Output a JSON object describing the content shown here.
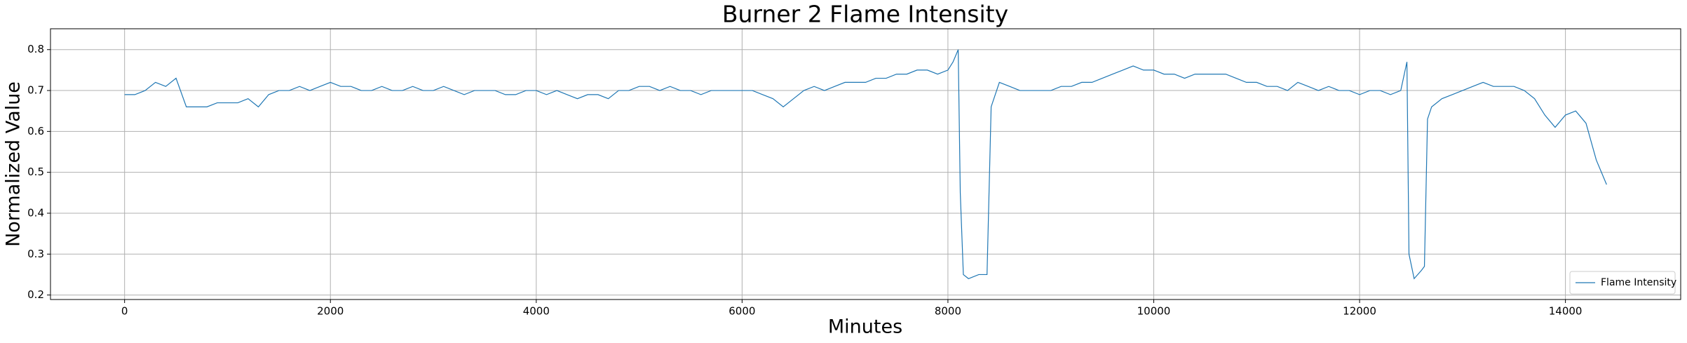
{
  "chart_data": {
    "type": "line",
    "title": "Burner 2 Flame Intensity",
    "x_label": "Minutes",
    "y_label": "Normalized Value",
    "x": [
      0,
      100,
      200,
      300,
      400,
      500,
      600,
      700,
      800,
      900,
      1000,
      1100,
      1200,
      1300,
      1400,
      1500,
      1600,
      1700,
      1800,
      1900,
      2000,
      2100,
      2200,
      2300,
      2400,
      2500,
      2600,
      2700,
      2800,
      2900,
      3000,
      3100,
      3200,
      3300,
      3400,
      3500,
      3600,
      3700,
      3800,
      3900,
      4000,
      4100,
      4200,
      4300,
      4400,
      4500,
      4600,
      4700,
      4800,
      4900,
      5000,
      5100,
      5200,
      5300,
      5400,
      5500,
      5600,
      5700,
      5800,
      5900,
      6000,
      6100,
      6200,
      6300,
      6400,
      6500,
      6600,
      6700,
      6800,
      6900,
      7000,
      7100,
      7200,
      7300,
      7400,
      7500,
      7600,
      7700,
      7800,
      7900,
      8000,
      8050,
      8100,
      8120,
      8150,
      8200,
      8300,
      8380,
      8420,
      8500,
      8600,
      8700,
      8800,
      8900,
      9000,
      9100,
      9200,
      9300,
      9400,
      9500,
      9600,
      9700,
      9800,
      9900,
      10000,
      10100,
      10200,
      10300,
      10400,
      10500,
      10600,
      10700,
      10800,
      10900,
      11000,
      11100,
      11200,
      11300,
      11400,
      11500,
      11600,
      11700,
      11800,
      11900,
      12000,
      12100,
      12200,
      12300,
      12400,
      12460,
      12480,
      12530,
      12600,
      12630,
      12660,
      12700,
      12800,
      12900,
      13000,
      13100,
      13200,
      13300,
      13400,
      13500,
      13600,
      13700,
      13800,
      13900,
      14000,
      14100,
      14200,
      14300,
      14400
    ],
    "series": [
      {
        "name": "Flame Intensity",
        "color": "#1f77b4",
        "values": [
          0.69,
          0.69,
          0.7,
          0.72,
          0.71,
          0.73,
          0.66,
          0.66,
          0.66,
          0.67,
          0.67,
          0.67,
          0.68,
          0.66,
          0.69,
          0.7,
          0.7,
          0.71,
          0.7,
          0.71,
          0.72,
          0.71,
          0.71,
          0.7,
          0.7,
          0.71,
          0.7,
          0.7,
          0.71,
          0.7,
          0.7,
          0.71,
          0.7,
          0.69,
          0.7,
          0.7,
          0.7,
          0.69,
          0.69,
          0.7,
          0.7,
          0.69,
          0.7,
          0.69,
          0.68,
          0.69,
          0.69,
          0.68,
          0.7,
          0.7,
          0.71,
          0.71,
          0.7,
          0.71,
          0.7,
          0.7,
          0.69,
          0.7,
          0.7,
          0.7,
          0.7,
          0.7,
          0.69,
          0.68,
          0.66,
          0.68,
          0.7,
          0.71,
          0.7,
          0.71,
          0.72,
          0.72,
          0.72,
          0.73,
          0.73,
          0.74,
          0.74,
          0.75,
          0.75,
          0.74,
          0.75,
          0.77,
          0.8,
          0.45,
          0.25,
          0.24,
          0.25,
          0.25,
          0.66,
          0.72,
          0.71,
          0.7,
          0.7,
          0.7,
          0.7,
          0.71,
          0.71,
          0.72,
          0.72,
          0.73,
          0.74,
          0.75,
          0.76,
          0.75,
          0.75,
          0.74,
          0.74,
          0.73,
          0.74,
          0.74,
          0.74,
          0.74,
          0.73,
          0.72,
          0.72,
          0.71,
          0.71,
          0.7,
          0.72,
          0.71,
          0.7,
          0.71,
          0.7,
          0.7,
          0.69,
          0.7,
          0.7,
          0.69,
          0.7,
          0.77,
          0.3,
          0.24,
          0.26,
          0.27,
          0.63,
          0.66,
          0.68,
          0.69,
          0.7,
          0.71,
          0.72,
          0.71,
          0.71,
          0.71,
          0.7,
          0.68,
          0.64,
          0.61,
          0.64,
          0.65,
          0.62,
          0.53,
          0.47
        ]
      }
    ],
    "xlim": [
      -720,
      15120
    ],
    "ylim": [
      0.189,
      0.851
    ],
    "xticks": [
      0,
      2000,
      4000,
      6000,
      8000,
      10000,
      12000,
      14000
    ],
    "yticks": [
      0.2,
      0.3,
      0.4,
      0.5,
      0.6,
      0.7,
      0.8
    ],
    "grid": true,
    "legend": "lower right"
  }
}
